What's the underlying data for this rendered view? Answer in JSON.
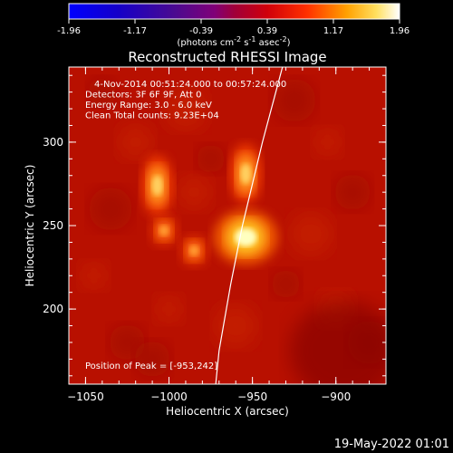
{
  "chart_data": {
    "type": "heatmap",
    "title": "Reconstructed RHESSI Image",
    "xlabel": "Heliocentric X (arcsec)",
    "ylabel": "Heliocentric Y (arcsec)",
    "xlim": [
      -1060,
      -870
    ],
    "ylim": [
      155,
      345
    ],
    "x_ticks": [
      -1050,
      -1000,
      -950,
      -900
    ],
    "y_ticks": [
      200,
      250,
      300
    ],
    "colorbar": {
      "range": [
        -1.96,
        1.96
      ],
      "ticks": [
        "-1.96",
        "-1.17",
        "-0.39",
        "0.39",
        "1.17",
        "1.96"
      ],
      "unit_line": {
        "pre": "(photons cm",
        "sup1": "-2",
        "mid1": " s",
        "sup2": "-1",
        "mid2": " asec",
        "sup3": "-2",
        "post": ")"
      }
    },
    "annotations": [
      "4-Nov-2014 00:51:24.000 to 00:57:24.000",
      "Detectors: 3F 6F 9F, Att 0",
      "Energy Range: 3.0 - 6.0 keV",
      "Clean    Total counts: 9.23E+04"
    ],
    "peak_label": "Position of Peak = [-953,242]",
    "sources": [
      {
        "x": -954,
        "y": 243,
        "peak": 1.96
      },
      {
        "x": -1007,
        "y": 274,
        "peak": 1.05
      },
      {
        "x": -954,
        "y": 281,
        "peak": 1.05
      },
      {
        "x": -1003,
        "y": 247,
        "peak": 0.5
      },
      {
        "x": -985,
        "y": 235,
        "peak": 0.5
      }
    ],
    "limb_curve": [
      [
        -932,
        345
      ],
      [
        -944,
        300
      ],
      [
        -956,
        250
      ],
      [
        -963,
        215
      ],
      [
        -970,
        175
      ],
      [
        -972,
        155
      ]
    ],
    "grid": false
  },
  "footer_date": "19-May-2022 01:01"
}
